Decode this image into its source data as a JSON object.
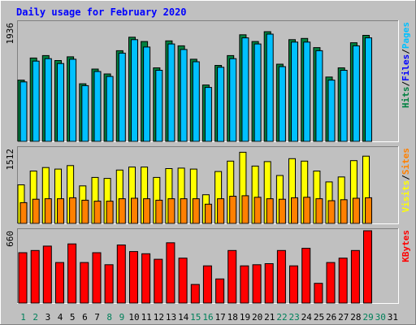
{
  "chart_data": {
    "type": "bar",
    "title": "Daily usage for February 2020",
    "days": [
      "1",
      "2",
      "3",
      "4",
      "5",
      "6",
      "7",
      "8",
      "9",
      "10",
      "11",
      "12",
      "13",
      "14",
      "15",
      "16",
      "17",
      "18",
      "19",
      "20",
      "21",
      "22",
      "23",
      "24",
      "25",
      "26",
      "27",
      "28",
      "29",
      "30",
      "31"
    ],
    "weekend_days": [
      1,
      2,
      8,
      9,
      15,
      16,
      22,
      23,
      29,
      30
    ],
    "panels": [
      {
        "id": "top",
        "ymax_label": "1936",
        "ymax": 1936,
        "series": [
          {
            "name": "Hits",
            "color": "#008040",
            "values": [
              1000,
              1360,
              1400,
              1320,
              1380,
              940,
              1180,
              1100,
              1480,
              1700,
              1630,
              1200,
              1640,
              1560,
              1340,
              920,
              1240,
              1400,
              1740,
              1630,
              1790,
              1260,
              1660,
              1680,
              1530,
              1050,
              1200,
              1610,
              1730,
              0,
              0
            ]
          },
          {
            "name": "Files",
            "color": "#00c0ff",
            "values": [
              970,
              1310,
              1350,
              1270,
              1340,
              910,
              1140,
              1060,
              1440,
              1660,
              1540,
              1160,
              1590,
              1500,
              1300,
              880,
              1210,
              1350,
              1690,
              1590,
              1750,
              1220,
              1620,
              1620,
              1480,
              1000,
              1160,
              1560,
              1690,
              0,
              0
            ]
          }
        ],
        "axis_labels": [
          {
            "text": "Hits",
            "color": "#008040"
          },
          {
            "text": "Files",
            "color": "#0000ff"
          },
          {
            "text": "Pages",
            "color": "#00c0ff"
          }
        ]
      },
      {
        "id": "middle",
        "ymax_label": "1512",
        "ymax": 1512,
        "series": [
          {
            "name": "Visits",
            "color": "#ffff00",
            "values": [
              780,
              1060,
              1130,
              1100,
              1170,
              760,
              930,
              910,
              1080,
              1140,
              1140,
              930,
              1110,
              1120,
              1100,
              580,
              1050,
              1260,
              1440,
              1160,
              1250,
              970,
              1310,
              1260,
              1060,
              840,
              940,
              1270,
              1360,
              0,
              0
            ]
          },
          {
            "name": "Sites",
            "color": "#ff8000",
            "values": [
              420,
              490,
              500,
              500,
              520,
              470,
              450,
              450,
              500,
              510,
              500,
              470,
              500,
              500,
              500,
              390,
              500,
              550,
              560,
              530,
              500,
              490,
              520,
              530,
              500,
              460,
              480,
              510,
              520,
              0,
              0
            ]
          }
        ],
        "axis_labels": [
          {
            "text": "Visits",
            "color": "#ffff00"
          },
          {
            "text": "Sites",
            "color": "#ff8000"
          }
        ]
      },
      {
        "id": "bottom",
        "ymax_label": "660",
        "ymax": 660,
        "series": [
          {
            "name": "KBytes",
            "color": "#ff0000",
            "values": [
              460,
              480,
              520,
              370,
              540,
              370,
              460,
              350,
              530,
              470,
              450,
              400,
              550,
              410,
              170,
              340,
              220,
              480,
              340,
              350,
              360,
              480,
              340,
              500,
              180,
              370,
              410,
              480,
              660,
              0,
              0
            ]
          }
        ],
        "axis_labels": [
          {
            "text": "KBytes",
            "color": "#ff0000"
          }
        ]
      }
    ]
  }
}
